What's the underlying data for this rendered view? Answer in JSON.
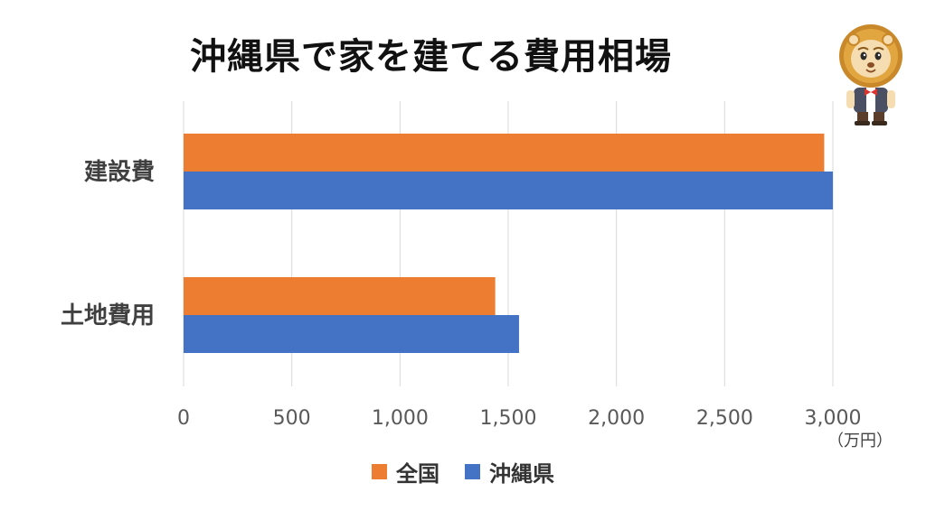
{
  "title": "沖縄県で家を建てる費用相場",
  "unit_label": "（万円）",
  "colors": {
    "national": "#ED7D31",
    "okinawa": "#4472C4",
    "grid": "#D9D9D9",
    "axis_text": "#595959",
    "category_text": "#404040"
  },
  "legend": [
    {
      "name": "全国",
      "color_key": "national"
    },
    {
      "name": "沖縄県",
      "color_key": "okinawa"
    }
  ],
  "chart_data": {
    "type": "bar",
    "orientation": "horizontal",
    "categories": [
      "建設費",
      "土地費用"
    ],
    "series": [
      {
        "name": "全国",
        "values": [
          2960,
          1440
        ]
      },
      {
        "name": "沖縄県",
        "values": [
          3000,
          1550
        ]
      }
    ],
    "xlim": [
      0,
      3000
    ],
    "xticks": [
      0,
      500,
      1000,
      1500,
      2000,
      2500,
      3000
    ],
    "xtick_labels": [
      "0",
      "500",
      "1,000",
      "1,500",
      "2,000",
      "2,500",
      "3,000"
    ],
    "grid": true,
    "legend_position": "bottom"
  },
  "mascot_icon": "lion-mascot-icon"
}
